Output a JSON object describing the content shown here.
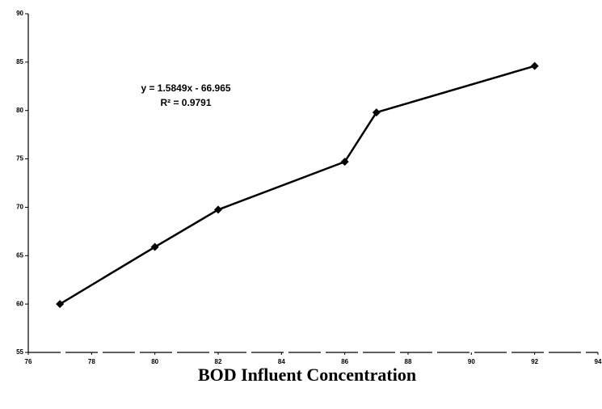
{
  "chart_data": {
    "type": "line",
    "x_label": "BOD Influent Concentration",
    "annotations": [
      "y = 1.5849x - 66.965",
      "R² = 0.9791"
    ],
    "x": [
      77,
      80,
      82,
      86,
      87,
      92
    ],
    "series": [
      {
        "color": "#000000",
        "values": [
          60,
          65.9,
          69.75,
          74.7,
          79.8,
          84.6
        ]
      }
    ],
    "xlim": [
      76,
      94
    ],
    "xticks": [
      76,
      78,
      80,
      82,
      84,
      86,
      88,
      90,
      92,
      94
    ],
    "ylim": [
      55,
      90
    ],
    "yticks": [
      55,
      60,
      65,
      70,
      75,
      80,
      85,
      90
    ],
    "grid": false
  }
}
